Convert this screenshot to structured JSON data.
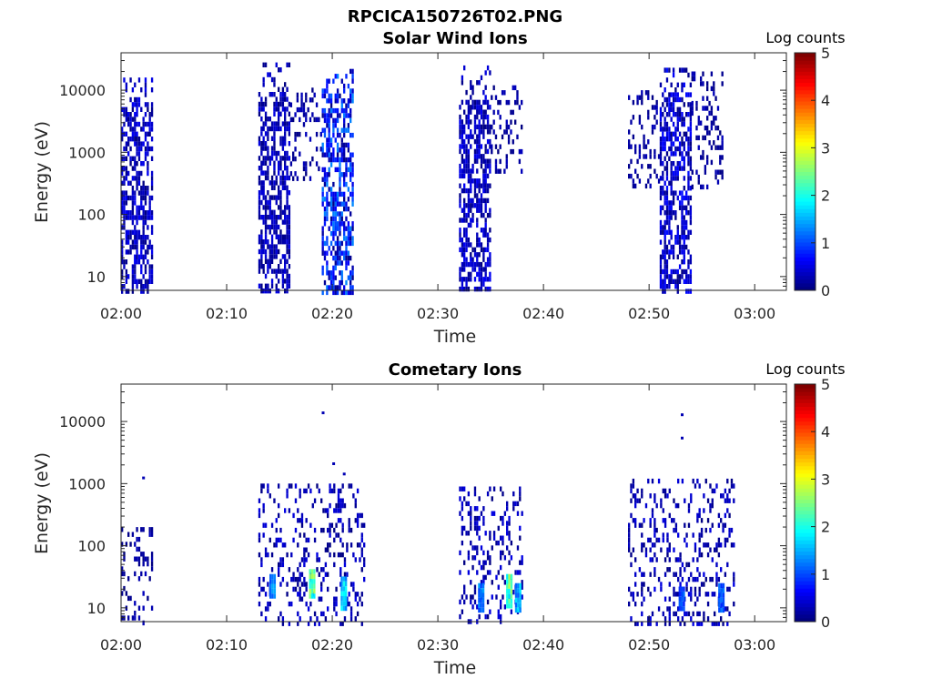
{
  "figure": {
    "title": "RPCICA150726T02.PNG"
  },
  "colorbar": {
    "label": "Log counts",
    "range": [
      0,
      5
    ],
    "ticks": [
      "0",
      "1",
      "2",
      "3",
      "4",
      "5"
    ],
    "colormap": "jet"
  },
  "chart_data": [
    {
      "type": "heatmap",
      "title": "Solar Wind Ions",
      "xlabel": "Time",
      "ylabel": "Energy (eV)",
      "x_ticks": [
        "02:00",
        "02:10",
        "02:20",
        "02:30",
        "02:40",
        "02:50",
        "03:00"
      ],
      "y_ticks": [
        "10",
        "100",
        "1000",
        "10000"
      ],
      "y_scale": "log",
      "ylim": [
        6,
        40000
      ],
      "xlim": [
        "02:00",
        "03:03"
      ],
      "colorbar_label": "Log counts",
      "colorbar_range": [
        0,
        5
      ],
      "activity_bursts": [
        {
          "start": "02:00",
          "end": "02:03",
          "e_min": 6,
          "e_max": 16000,
          "dense_max": 7000,
          "peak_log_counts": 0.6
        },
        {
          "start": "02:13",
          "end": "02:16",
          "e_min": 6,
          "e_max": 28000,
          "dense_max": 10000,
          "peak_log_counts": 0.5
        },
        {
          "start": "02:16",
          "end": "02:19",
          "e_min": 400,
          "e_max": 11000,
          "dense_max": 0,
          "peak_log_counts": 0.3
        },
        {
          "start": "02:19",
          "end": "02:22",
          "e_min": 6,
          "e_max": 22000,
          "dense_max": 12000,
          "peak_log_counts": 1.3
        },
        {
          "start": "02:32",
          "end": "02:35",
          "e_min": 6,
          "e_max": 25000,
          "dense_max": 8000,
          "peak_log_counts": 0.6
        },
        {
          "start": "02:35",
          "end": "02:38",
          "e_min": 500,
          "e_max": 12000,
          "dense_max": 0,
          "peak_log_counts": 0.3
        },
        {
          "start": "02:48",
          "end": "02:51",
          "e_min": 300,
          "e_max": 10000,
          "dense_max": 0,
          "peak_log_counts": 0.3
        },
        {
          "start": "02:51",
          "end": "02:54",
          "e_min": 6,
          "e_max": 23000,
          "dense_max": 10000,
          "peak_log_counts": 0.7
        },
        {
          "start": "02:54",
          "end": "02:57",
          "e_min": 300,
          "e_max": 20000,
          "dense_max": 0,
          "peak_log_counts": 0.3
        }
      ]
    },
    {
      "type": "heatmap",
      "title": "Cometary Ions",
      "xlabel": "Time",
      "ylabel": "Energy (eV)",
      "x_ticks": [
        "02:00",
        "02:10",
        "02:20",
        "02:30",
        "02:40",
        "02:50",
        "03:00"
      ],
      "y_ticks": [
        "10",
        "100",
        "1000",
        "10000"
      ],
      "y_scale": "log",
      "ylim": [
        6,
        40000
      ],
      "xlim": [
        "02:00",
        "03:03"
      ],
      "colorbar_label": "Log counts",
      "colorbar_range": [
        0,
        5
      ],
      "activity_bursts": [
        {
          "start": "02:00",
          "end": "02:03",
          "e_min": 6,
          "e_max": 200,
          "dense_max": 0,
          "peak_log_counts": 0.3
        },
        {
          "start": "02:13",
          "end": "02:23",
          "e_min": 6,
          "e_max": 1000,
          "dense_max": 0,
          "peak_log_counts": 0.5
        },
        {
          "start": "02:32",
          "end": "02:38",
          "e_min": 6,
          "e_max": 900,
          "dense_max": 0,
          "peak_log_counts": 0.5
        },
        {
          "start": "02:48",
          "end": "02:58",
          "e_min": 6,
          "e_max": 1200,
          "dense_max": 0,
          "peak_log_counts": 0.5
        }
      ],
      "hot_spots": [
        {
          "time": "02:14:15",
          "e_low": 15,
          "e_high": 35,
          "log_counts": 1.5
        },
        {
          "time": "02:18:00",
          "e_low": 15,
          "e_high": 42,
          "log_counts": 2.8
        },
        {
          "time": "02:21:00",
          "e_low": 10,
          "e_high": 32,
          "log_counts": 2.0
        },
        {
          "time": "02:34:00",
          "e_low": 10,
          "e_high": 25,
          "log_counts": 1.5
        },
        {
          "time": "02:36:40",
          "e_low": 10,
          "e_high": 35,
          "log_counts": 2.8
        },
        {
          "time": "02:37:30",
          "e_low": 10,
          "e_high": 25,
          "log_counts": 1.8
        },
        {
          "time": "02:53:00",
          "e_low": 10,
          "e_high": 22,
          "log_counts": 1.2
        },
        {
          "time": "02:56:45",
          "e_low": 10,
          "e_high": 25,
          "log_counts": 1.3
        }
      ],
      "isolated_points": [
        {
          "time": "02:02",
          "energy": 1300
        },
        {
          "time": "02:19",
          "energy": 14500
        },
        {
          "time": "02:20",
          "energy": 2200
        },
        {
          "time": "02:21",
          "energy": 1500
        },
        {
          "time": "02:53",
          "energy": 13500
        },
        {
          "time": "02:53",
          "energy": 5700
        }
      ]
    }
  ]
}
